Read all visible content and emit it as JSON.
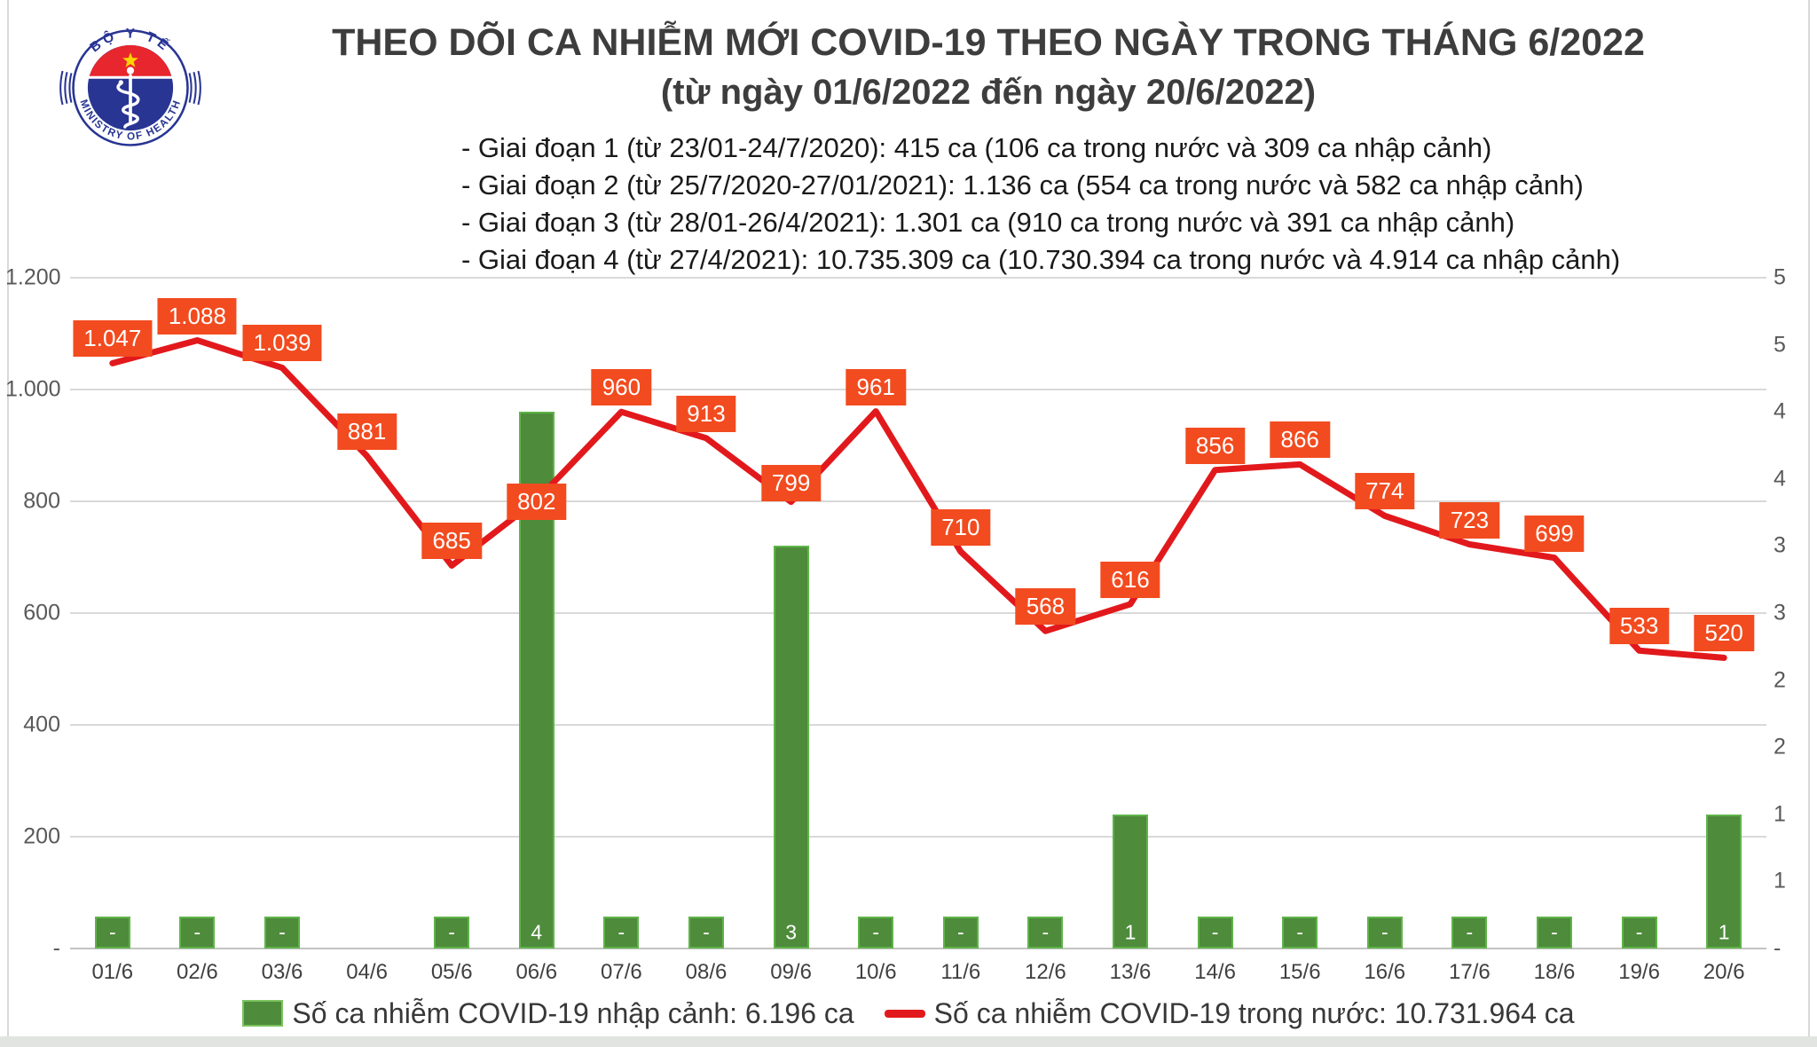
{
  "logo": {
    "arc_top": "BỘ Y TẾ",
    "arc_bottom": "MINISTRY OF HEALTH"
  },
  "header": {
    "title": "THEO DÕI CA NHIỄM MỚI COVID-19 THEO NGÀY TRONG THÁNG 6/2022",
    "subtitle": "(từ ngày 01/6/2022 đến ngày 20/6/2022)",
    "notes": [
      "- Giai đoạn 1 (từ 23/01-24/7/2020): 415 ca (106 ca trong nước và 309 ca nhập cảnh)",
      "- Giai đoạn 2 (từ 25/7/2020-27/01/2021): 1.136 ca (554 ca trong nước và 582 ca nhập cảnh)",
      "- Giai đoạn 3 (từ 28/01-26/4/2021): 1.301 ca (910 ca trong nước và 391 ca nhập cảnh)",
      "- Giai đoạn 4 (từ 27/4/2021): 10.735.309 ca (10.730.394 ca trong nước và 4.914 ca nhập cảnh)"
    ]
  },
  "chart_data": {
    "type": "combo-bar-line",
    "categories": [
      "01/6",
      "02/6",
      "03/6",
      "04/6",
      "05/6",
      "06/6",
      "07/6",
      "08/6",
      "09/6",
      "10/6",
      "11/6",
      "12/6",
      "13/6",
      "14/6",
      "15/6",
      "16/6",
      "17/6",
      "18/6",
      "19/6",
      "20/6"
    ],
    "series": [
      {
        "name": "Số ca nhiễm COVID-19 nhập cảnh",
        "type": "bar",
        "axis": "right",
        "values": [
          0,
          0,
          0,
          null,
          0,
          4,
          0,
          0,
          3,
          0,
          0,
          0,
          1,
          0,
          0,
          0,
          0,
          0,
          0,
          1
        ],
        "labels": [
          "-",
          "-",
          "-",
          null,
          "-",
          "4",
          "-",
          "-",
          "3",
          "-",
          "-",
          "-",
          "1",
          "-",
          "-",
          "-",
          "-",
          "-",
          "-",
          "1"
        ]
      },
      {
        "name": "Số ca nhiễm COVID-19 trong nước",
        "type": "line",
        "axis": "left",
        "values": [
          1047,
          1088,
          1039,
          881,
          685,
          802,
          960,
          913,
          799,
          961,
          710,
          568,
          616,
          856,
          866,
          774,
          723,
          699,
          533,
          520
        ],
        "labels": [
          "1.047",
          "1.088",
          "1.039",
          "881",
          "685",
          "802",
          "960",
          "913",
          "799",
          "961",
          "710",
          "568",
          "616",
          "856",
          "866",
          "774",
          "723",
          "699",
          "533",
          "520"
        ]
      }
    ],
    "left_axis": {
      "min": 0,
      "max": 1200,
      "ticks": [
        "1.200",
        "1.000",
        "800",
        "600",
        "400",
        "200",
        "-"
      ]
    },
    "right_axis": {
      "min": 0,
      "max": 5,
      "ticks": [
        "5",
        "5",
        "4",
        "4",
        "3",
        "3",
        "2",
        "2",
        "1",
        "1",
        "-"
      ]
    },
    "grid": true,
    "legend_position": "bottom"
  },
  "legend": {
    "bar_label": "Số ca nhiễm COVID-19 nhập cảnh: 6.196 ca",
    "line_label": "Số ca nhiễm COVID-19 trong nước: 10.731.964 ca"
  },
  "colors": {
    "bar": "#4e8b3b",
    "bar_border": "#5fb449",
    "line": "#e2191c",
    "label_box": "#f24b1f",
    "grid": "#d9d9d9",
    "axis_text": "#595959",
    "strip": "#e1e4e0"
  }
}
